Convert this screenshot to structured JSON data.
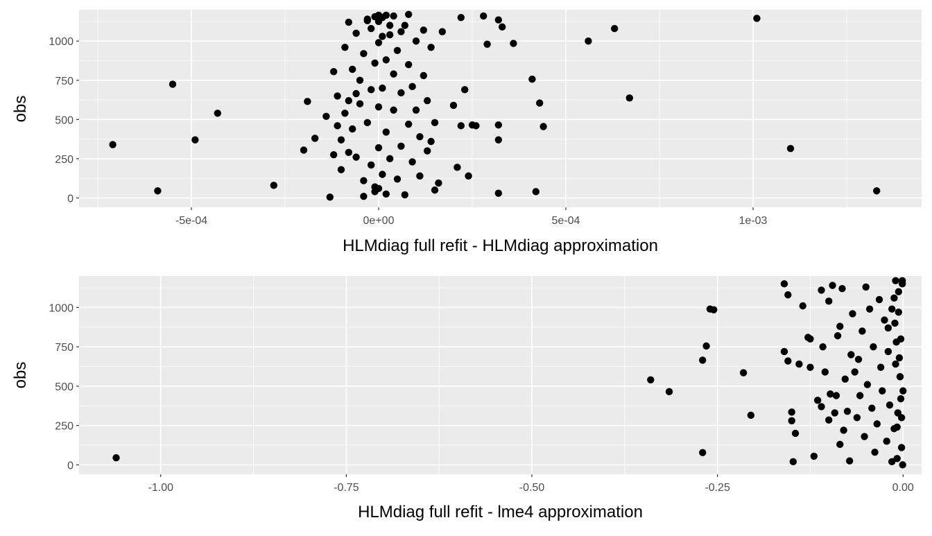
{
  "chart_data": [
    {
      "type": "scatter",
      "xlabel": "HLMdiag full refit - HLMdiag approximation",
      "ylabel": "obs",
      "xlim": [
        -0.0008,
        0.00145
      ],
      "ylim": [
        -60,
        1200
      ],
      "x_ticks": [
        {
          "value": -0.0005,
          "label": "-5e-04"
        },
        {
          "value": 0.0,
          "label": "0e+00"
        },
        {
          "value": 0.0005,
          "label": "5e-04"
        },
        {
          "value": 0.001,
          "label": "1e-03"
        }
      ],
      "y_ticks": [
        {
          "value": 0,
          "label": "0"
        },
        {
          "value": 250,
          "label": "250"
        },
        {
          "value": 500,
          "label": "500"
        },
        {
          "value": 750,
          "label": "750"
        },
        {
          "value": 1000,
          "label": "1000"
        }
      ],
      "grid": true,
      "series": [
        {
          "x": [
            -0.00071,
            -0.00059,
            -0.00049,
            -0.00043,
            -0.00028,
            -0.0002,
            -0.00019,
            -0.00017,
            -0.00014,
            -0.00013,
            -0.00012,
            -0.00012,
            -0.00011,
            -0.00011,
            -0.0001,
            -0.0001,
            -9e-05,
            -9e-05,
            -8e-05,
            -8e-05,
            -8e-05,
            -7e-05,
            -7e-05,
            -6e-05,
            -6e-05,
            -5e-05,
            -5e-05,
            -4e-05,
            -4e-05,
            -3e-05,
            -3e-05,
            -2e-05,
            -2e-05,
            -1e-05,
            -1e-05,
            0.0,
            0.0,
            0.0,
            0.0,
            1e-05,
            1e-05,
            2e-05,
            2e-05,
            3e-05,
            3e-05,
            4e-05,
            4e-05,
            5e-05,
            5e-05,
            6e-05,
            6e-05,
            7e-05,
            7e-05,
            8e-05,
            8e-05,
            9e-05,
            9e-05,
            0.0001,
            0.0001,
            0.00011,
            0.00011,
            0.00012,
            0.00012,
            0.00013,
            0.00013,
            0.00014,
            0.00014,
            0.00015,
            0.00015,
            0.00016,
            0.00017,
            0.0002,
            0.00021,
            0.00022,
            0.00022,
            0.00023,
            0.00024,
            0.00025,
            0.00026,
            0.00028,
            0.00029,
            0.00032,
            0.00032,
            0.00032,
            0.00032,
            0.00033,
            0.00036,
            0.00041,
            0.00042,
            0.00043,
            0.00044,
            0.00056,
            0.00063,
            0.00067,
            0.00101,
            0.0011,
            0.00133,
            -0.00055,
            -6e-05,
            2e-05,
            8e-05,
            -3e-05,
            4e-05,
            0.0,
            -1e-05,
            1e-05,
            0.0,
            3e-05,
            -2e-05,
            6e-05,
            1e-05,
            -4e-05,
            2e-05,
            0.0,
            -1e-05
          ],
          "y": [
            340,
            45,
            370,
            540,
            80,
            305,
            615,
            380,
            520,
            5,
            275,
            805,
            650,
            460,
            180,
            370,
            540,
            960,
            620,
            290,
            1120,
            820,
            440,
            1050,
            260,
            750,
            600,
            110,
            920,
            480,
            1130,
            210,
            690,
            860,
            40,
            320,
            580,
            990,
            1160,
            150,
            700,
            880,
            420,
            1040,
            250,
            560,
            790,
            120,
            940,
            670,
            330,
            1100,
            20,
            470,
            850,
            710,
            230,
            1000,
            560,
            390,
            140,
            780,
            1070,
            620,
            300,
            360,
            960,
            50,
            480,
            95,
            1060,
            590,
            195,
            460,
            1150,
            690,
            140,
            465,
            460,
            1160,
            980,
            465,
            370,
            1135,
            30,
            1090,
            985,
            757,
            40,
            605,
            455,
            1000,
            1080,
            637,
            1145,
            315,
            45,
            725,
            665,
            1165,
            1170,
            1140,
            1160,
            1165,
            1155,
            1150,
            1125,
            1100,
            1080,
            1060,
            1030,
            10,
            25,
            60,
            70
          ]
        }
      ]
    },
    {
      "type": "scatter",
      "xlabel": "HLMdiag full refit - lme4 approximation",
      "ylabel": "obs",
      "xlim": [
        -1.11,
        0.025
      ],
      "ylim": [
        -60,
        1200
      ],
      "x_ticks": [
        {
          "value": -1.0,
          "label": "-1.00"
        },
        {
          "value": -0.75,
          "label": "-0.75"
        },
        {
          "value": -0.5,
          "label": "-0.50"
        },
        {
          "value": -0.25,
          "label": "-0.25"
        },
        {
          "value": 0.0,
          "label": "0.00"
        }
      ],
      "y_ticks": [
        {
          "value": 0,
          "label": "0"
        },
        {
          "value": 250,
          "label": "250"
        },
        {
          "value": 500,
          "label": "500"
        },
        {
          "value": 750,
          "label": "750"
        },
        {
          "value": 1000,
          "label": "1000"
        }
      ],
      "grid": true,
      "series": [
        {
          "x": [
            -1.06,
            -0.34,
            -0.315,
            -0.27,
            -0.27,
            -0.265,
            -0.26,
            -0.255,
            -0.215,
            -0.205,
            -0.16,
            -0.16,
            -0.155,
            -0.155,
            -0.15,
            -0.15,
            -0.148,
            -0.145,
            -0.14,
            -0.135,
            -0.128,
            -0.125,
            -0.125,
            -0.12,
            -0.115,
            -0.11,
            -0.11,
            -0.108,
            -0.105,
            -0.1,
            -0.1,
            -0.098,
            -0.095,
            -0.092,
            -0.09,
            -0.088,
            -0.085,
            -0.085,
            -0.082,
            -0.08,
            -0.078,
            -0.075,
            -0.072,
            -0.07,
            -0.068,
            -0.065,
            -0.062,
            -0.06,
            -0.058,
            -0.055,
            -0.052,
            -0.05,
            -0.048,
            -0.045,
            -0.042,
            -0.04,
            -0.038,
            -0.035,
            -0.032,
            -0.03,
            -0.028,
            -0.025,
            -0.022,
            -0.02,
            -0.018,
            -0.015,
            -0.012,
            -0.01,
            -0.008,
            -0.006,
            -0.004,
            -0.003,
            -0.002,
            -0.001,
            -0.0005,
            0.0,
            -0.01,
            -0.015,
            -0.02,
            -0.005,
            -0.008,
            -0.012,
            -0.003,
            -0.006,
            -0.002,
            -0.009,
            -0.004,
            -0.007,
            -0.001,
            -0.011
          ],
          "y": [
            45,
            540,
            465,
            665,
            78,
            755,
            990,
            985,
            585,
            315,
            1150,
            720,
            660,
            1080,
            335,
            280,
            20,
            200,
            640,
            1010,
            810,
            800,
            620,
            55,
            410,
            370,
            1110,
            750,
            590,
            1040,
            285,
            450,
            1140,
            330,
            440,
            820,
            130,
            880,
            1120,
            220,
            545,
            340,
            25,
            700,
            960,
            590,
            300,
            670,
            440,
            850,
            180,
            1130,
            510,
            990,
            360,
            750,
            80,
            260,
            1050,
            620,
            470,
            920,
            150,
            720,
            380,
            990,
            230,
            640,
            40,
            1100,
            560,
            800,
            300,
            1150,
            0,
            470,
            1170,
            20,
            870,
            680,
            240,
            1060,
            420,
            970,
            110,
            780,
            560,
            330,
            1170,
            900
          ]
        }
      ]
    }
  ]
}
